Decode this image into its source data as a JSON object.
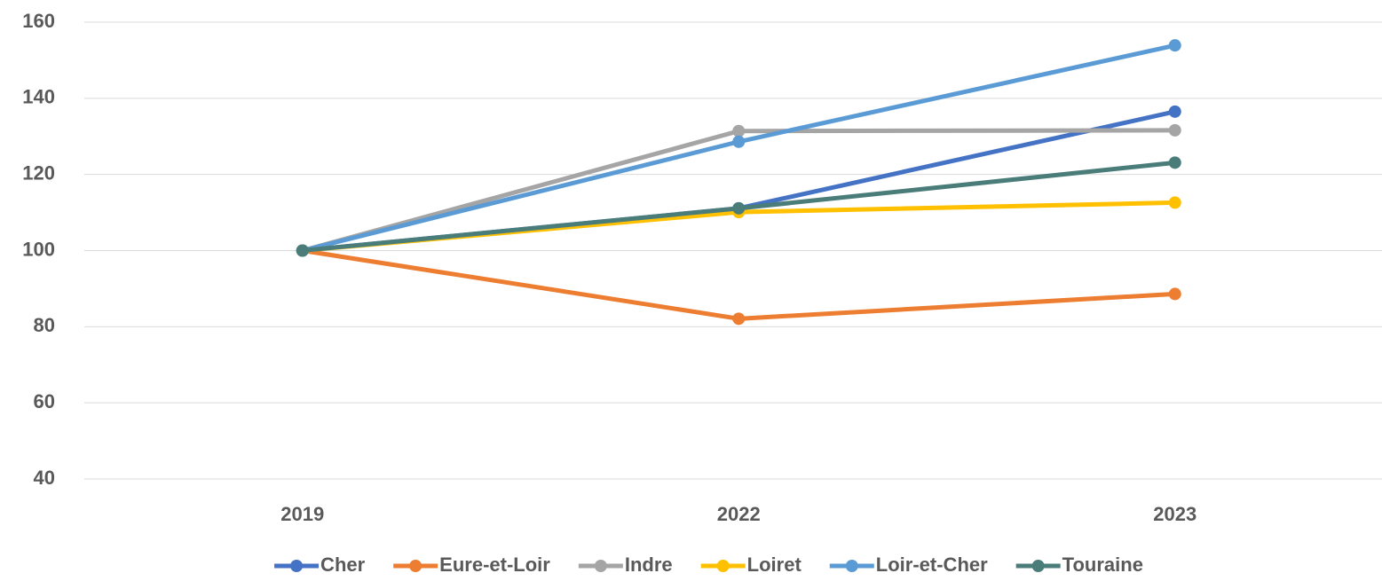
{
  "chart_data": {
    "type": "line",
    "categories": [
      "2019",
      "2022",
      "2023"
    ],
    "series": [
      {
        "name": "Cher",
        "color": "#4472c4",
        "values": [
          100,
          111.1,
          136.5
        ]
      },
      {
        "name": "Eure-et-Loir",
        "color": "#ed7d31",
        "values": [
          100,
          82.1,
          88.6
        ]
      },
      {
        "name": "Indre",
        "color": "#a5a5a5",
        "values": [
          100,
          131.4,
          131.6
        ]
      },
      {
        "name": "Loiret",
        "color": "#ffc000",
        "values": [
          100,
          110.1,
          112.6
        ]
      },
      {
        "name": "Loir-et-Cher",
        "color": "#5b9bd5",
        "values": [
          100,
          128.6,
          153.9
        ]
      },
      {
        "name": "Touraine",
        "color": "#4a7d7a",
        "values": [
          100,
          111.1,
          123.1
        ]
      }
    ],
    "ylim": [
      40,
      160
    ],
    "yticks": [
      40,
      60,
      80,
      100,
      120,
      140,
      160
    ],
    "grid": true,
    "legend": "bottom"
  }
}
